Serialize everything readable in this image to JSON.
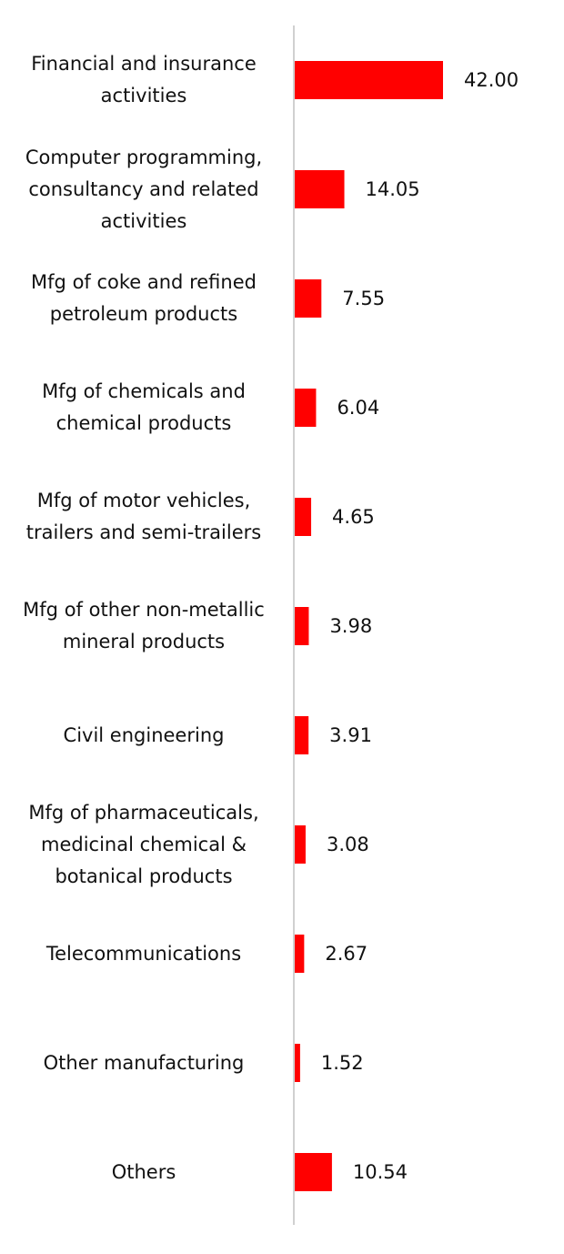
{
  "chart_data": {
    "type": "bar",
    "orientation": "horizontal",
    "categories": [
      "Financial and insurance\nactivities",
      "Computer programming,\nconsultancy and related\nactivities",
      "Mfg of coke and refined\npetroleum products",
      "Mfg of chemicals and\nchemical products",
      "Mfg of motor vehicles,\ntrailers and semi-trailers",
      "Mfg of other non-metallic\nmineral products",
      "Civil engineering",
      "Mfg of pharmaceuticals,\nmedicinal chemical &\nbotanical products",
      "Telecommunications",
      "Other manufacturing",
      "Others"
    ],
    "values": [
      42.0,
      14.05,
      7.55,
      6.04,
      4.65,
      3.98,
      3.91,
      3.08,
      2.67,
      1.52,
      10.54
    ],
    "value_labels": [
      "42.00",
      "14.05",
      "7.55",
      "6.04",
      "4.65",
      "3.98",
      "3.91",
      "3.08",
      "2.67",
      "1.52",
      "10.54"
    ],
    "title": "",
    "xlabel": "",
    "ylabel": "",
    "xlim": [
      0,
      42
    ],
    "grid": false,
    "legend": "none",
    "bar_color": "#ff0000",
    "axis_color": "#d0d0d0"
  }
}
